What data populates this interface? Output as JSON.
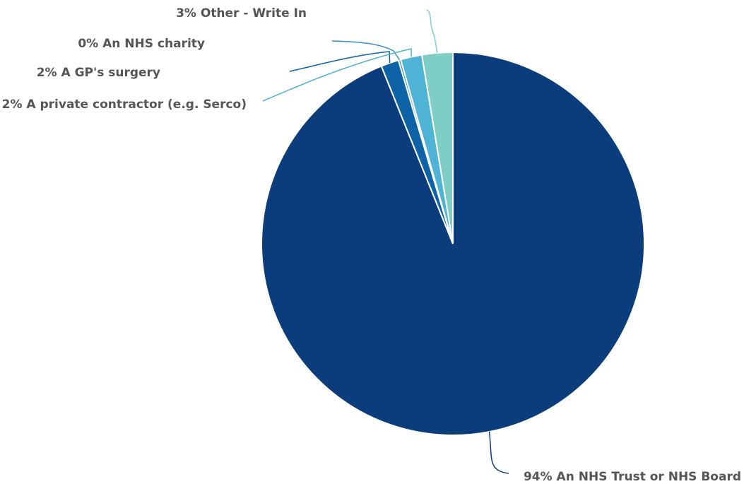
{
  "chart_data": {
    "type": "pie",
    "title": "",
    "slices": [
      {
        "label": "94% An NHS Trust or NHS Board",
        "name": "An NHS Trust or NHS Board",
        "value": 94,
        "color": "#0b3d7d"
      },
      {
        "label": "2% A GP's surgery",
        "name": "A GP's surgery",
        "value": 1.5,
        "color": "#0e62a6"
      },
      {
        "label": "0% An NHS charity",
        "name": "An NHS charity",
        "value": 0.2,
        "color": "#3a8fc8"
      },
      {
        "label": "2% A private contractor (e.g. Serco)",
        "name": "A private contractor (e.g. Serco)",
        "value": 1.8,
        "color": "#4fb3d6"
      },
      {
        "label": "3% Other - Write In",
        "name": "Other - Write In",
        "value": 2.6,
        "color": "#7ecec6"
      }
    ],
    "legend": "none"
  }
}
